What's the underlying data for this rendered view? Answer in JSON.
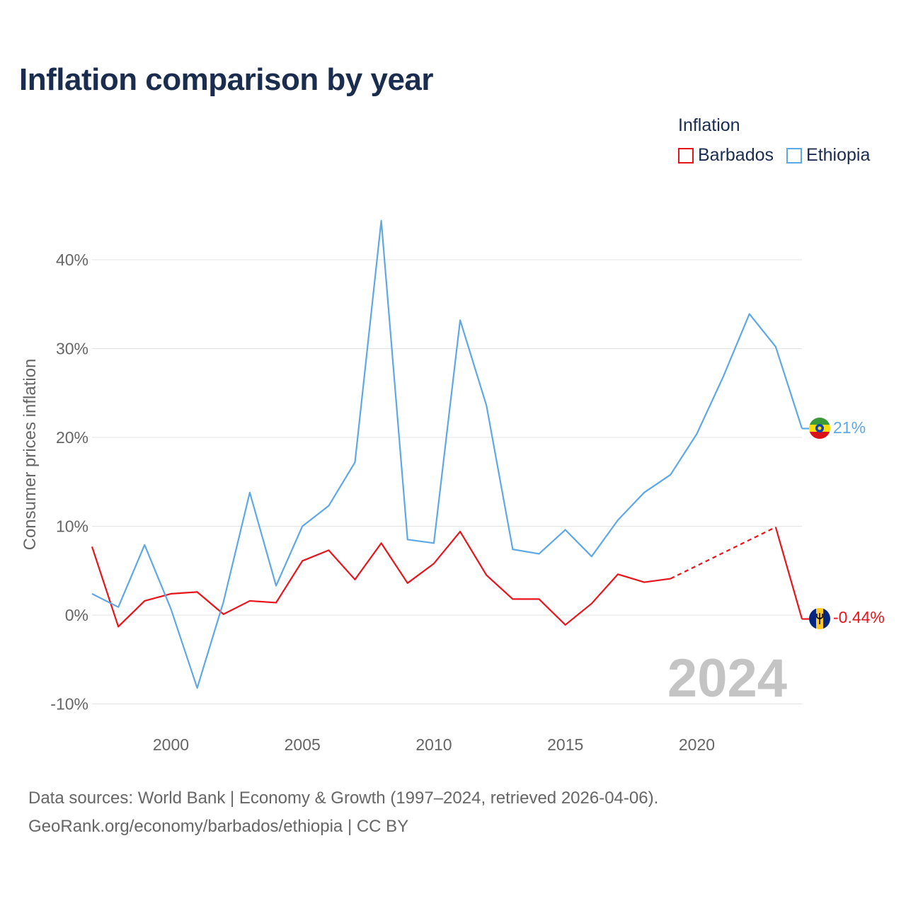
{
  "title": "Inflation comparison by year",
  "legend": {
    "title": "Inflation",
    "items": [
      {
        "name": "Barbados",
        "color": "#e8141c"
      },
      {
        "name": "Ethiopia",
        "color": "#5fa8e6"
      }
    ]
  },
  "source": {
    "line1": "Data sources: World Bank | Economy & Growth (1997–2024, retrieved 2026-04-06).",
    "line2": "GeoRank.org/economy/barbados/ethiopia | CC BY"
  },
  "chart_data": {
    "type": "line",
    "title": "Inflation comparison by year",
    "xlabel": "",
    "ylabel": "Consumer prices inflation",
    "xlim": [
      1997,
      2024
    ],
    "ylim": [
      -10,
      45
    ],
    "yticks": [
      -10,
      0,
      10,
      20,
      30,
      40
    ],
    "ytick_labels": [
      "-10%",
      "0%",
      "10%",
      "20%",
      "30%",
      "40%"
    ],
    "xticks": [
      2000,
      2005,
      2010,
      2015,
      2020
    ],
    "xtick_labels": [
      "2000",
      "2005",
      "2010",
      "2015",
      "2020"
    ],
    "year_label": "2024",
    "grid": true,
    "series": [
      {
        "name": "Barbados",
        "color": "#e8141c",
        "end_label": "-0.44%",
        "points": [
          [
            1997,
            7.7
          ],
          [
            1998,
            -1.3
          ],
          [
            1999,
            1.6
          ],
          [
            2000,
            2.4
          ],
          [
            2001,
            2.6
          ],
          [
            2002,
            0.1
          ],
          [
            2003,
            1.6
          ],
          [
            2004,
            1.4
          ],
          [
            2005,
            6.1
          ],
          [
            2006,
            7.3
          ],
          [
            2007,
            4.0
          ],
          [
            2008,
            8.1
          ],
          [
            2009,
            3.6
          ],
          [
            2010,
            5.8
          ],
          [
            2011,
            9.4
          ],
          [
            2012,
            4.5
          ],
          [
            2013,
            1.8
          ],
          [
            2014,
            1.8
          ],
          [
            2015,
            -1.1
          ],
          [
            2016,
            1.3
          ],
          [
            2017,
            4.6
          ],
          [
            2018,
            3.7
          ],
          [
            2019,
            4.1
          ],
          [
            2023,
            9.9
          ],
          [
            2024,
            -0.44
          ]
        ],
        "dashed_segments": [
          [
            2019,
            2023
          ]
        ]
      },
      {
        "name": "Ethiopia",
        "color": "#5fa8e6",
        "end_label": "21%",
        "points": [
          [
            1997,
            2.4
          ],
          [
            1998,
            0.9
          ],
          [
            1999,
            7.9
          ],
          [
            2000,
            0.7
          ],
          [
            2001,
            -8.2
          ],
          [
            2002,
            1.5
          ],
          [
            2003,
            13.8
          ],
          [
            2004,
            3.3
          ],
          [
            2005,
            10.0
          ],
          [
            2006,
            12.3
          ],
          [
            2007,
            17.2
          ],
          [
            2008,
            44.4
          ],
          [
            2009,
            8.5
          ],
          [
            2010,
            8.1
          ],
          [
            2011,
            33.2
          ],
          [
            2012,
            23.6
          ],
          [
            2013,
            7.4
          ],
          [
            2014,
            6.9
          ],
          [
            2015,
            9.6
          ],
          [
            2016,
            6.6
          ],
          [
            2017,
            10.7
          ],
          [
            2018,
            13.8
          ],
          [
            2019,
            15.8
          ],
          [
            2020,
            20.4
          ],
          [
            2021,
            26.8
          ],
          [
            2022,
            33.9
          ],
          [
            2023,
            30.2
          ],
          [
            2024,
            21.0
          ]
        ],
        "dashed_segments": []
      }
    ]
  }
}
